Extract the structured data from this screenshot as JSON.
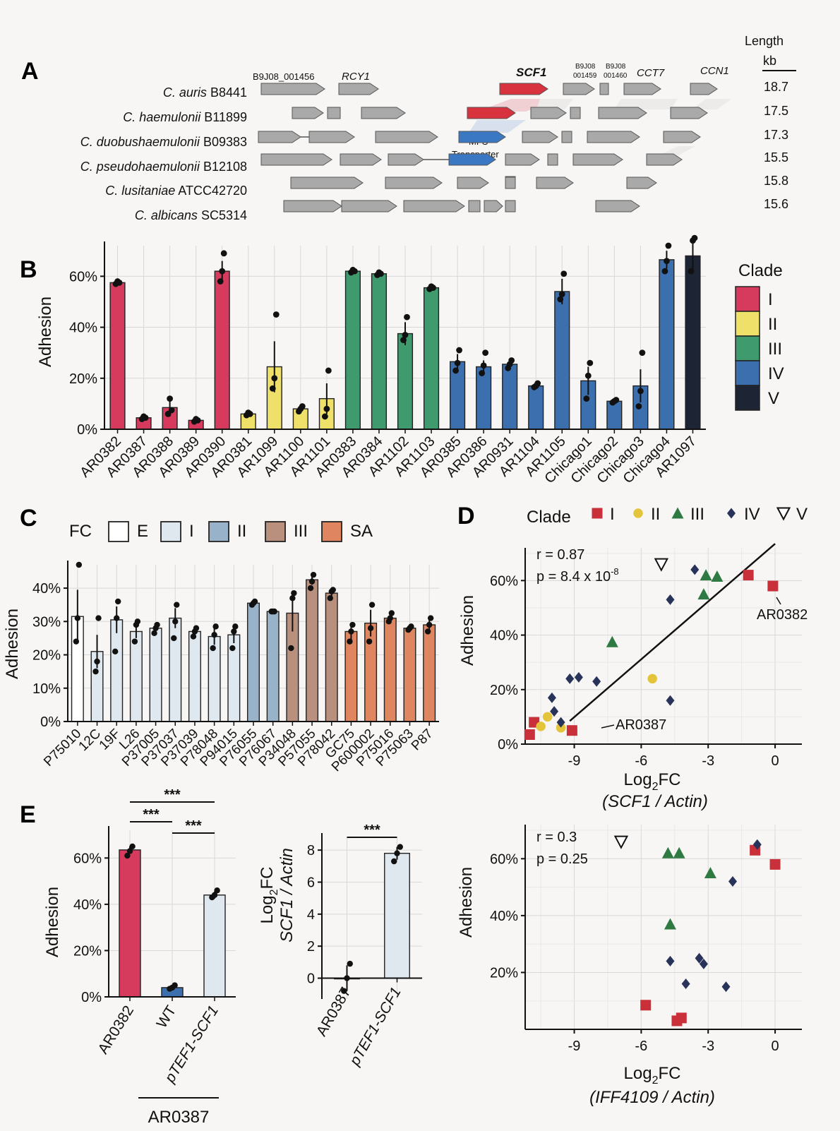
{
  "colors": {
    "I": "#d63a5c",
    "II": "#efe06a",
    "III": "#3f9a6e",
    "IV": "#3b6fae",
    "V": "#1d2433",
    "gene": "#a9a9a9",
    "scf1": "#d8323f",
    "mfs": "#3a78c4",
    "E": "#ffffff",
    "FCI": "#dfe7ef",
    "FCII": "#98b2c9",
    "FCIII": "#b9907e",
    "FCSA": "#df8660",
    "scI": "#c9303a",
    "scII": "#e3c43b",
    "scIII": "#2f7a43",
    "scIV": "#28335a"
  },
  "panelA": {
    "letter": "A",
    "length_header": "Length",
    "length_unit": "kb",
    "species": [
      {
        "name": "C. auris",
        "strain": "B8441",
        "length": "18.7"
      },
      {
        "name": "C. haemulonii",
        "strain": "B11899",
        "length": "17.5"
      },
      {
        "name": "C. duobushaemulonii",
        "strain": "B09383",
        "length": "17.3"
      },
      {
        "name": "C. pseudohaemulonii",
        "strain": "B12108",
        "length": "15.5"
      },
      {
        "name": "C. lusitaniae",
        "strain": "ATCC42720",
        "length": "15.8"
      },
      {
        "name": "C. albicans",
        "strain": "SC5314",
        "length": "15.6"
      }
    ],
    "gene_labels": {
      "g1": "B9J08_001456",
      "rcy1": "RCY1",
      "scf1": "SCF1",
      "g459a": "B9J08",
      "g459b": "001459",
      "g460a": "B9J08",
      "g460b": "001460",
      "cct7": "CCT7",
      "ccn1": "CCN1",
      "mfs1": "MFS",
      "mfs2": "Transporter"
    }
  },
  "panelB": {
    "letter": "B",
    "chart_data": {
      "type": "bar",
      "ylabel": "Adhesion",
      "ylim": [
        0,
        72
      ],
      "yticks": [
        "0%",
        "20%",
        "40%",
        "60%"
      ],
      "legend_title": "Clade",
      "legend": [
        "I",
        "II",
        "III",
        "IV",
        "V"
      ],
      "categories": [
        "AR0382",
        "AR0387",
        "AR0388",
        "AR0389",
        "AR0390",
        "AR0381",
        "AR1099",
        "AR1100",
        "AR1101",
        "AR0383",
        "AR0384",
        "AR1102",
        "AR1103",
        "AR0385",
        "AR0386",
        "AR0931",
        "AR1104",
        "AR1105",
        "Chicago1",
        "Chicago2",
        "Chicago3",
        "Chicago4",
        "AR1097"
      ],
      "clade": [
        "I",
        "I",
        "I",
        "I",
        "I",
        "II",
        "II",
        "II",
        "II",
        "III",
        "III",
        "III",
        "III",
        "IV",
        "IV",
        "IV",
        "IV",
        "IV",
        "IV",
        "IV",
        "IV",
        "IV",
        "V"
      ],
      "values": [
        57.5,
        4.5,
        8.5,
        3.5,
        62,
        6,
        24.5,
        8,
        12,
        62,
        61,
        37.5,
        55.5,
        26.5,
        24.5,
        25.5,
        17,
        54,
        19,
        11,
        17,
        66.5,
        68
      ],
      "err": [
        0.8,
        0.6,
        3.5,
        0.8,
        4,
        0.8,
        10,
        1.5,
        6,
        1,
        1,
        4.5,
        0.6,
        3,
        2.5,
        1.5,
        1,
        5,
        5.5,
        0.6,
        6.5,
        3.5,
        5.5
      ],
      "points": [
        [
          57,
          58,
          57.5
        ],
        [
          4,
          5,
          4.5
        ],
        [
          6,
          12,
          7.5
        ],
        [
          3,
          4,
          3.5
        ],
        [
          58,
          62,
          69
        ],
        [
          5.5,
          6.5,
          6
        ],
        [
          16,
          20,
          45
        ],
        [
          7,
          8,
          9
        ],
        [
          5,
          8,
          23
        ],
        [
          61.5,
          62.5,
          62
        ],
        [
          60.5,
          61.5,
          61
        ],
        [
          35,
          37,
          44
        ],
        [
          55,
          56,
          55.5
        ],
        [
          23,
          26,
          31
        ],
        [
          22,
          25,
          30
        ],
        [
          24,
          25.5,
          27
        ],
        [
          16.5,
          17,
          18
        ],
        [
          51,
          53,
          61
        ],
        [
          12,
          21,
          26
        ],
        [
          10.5,
          11,
          11.5
        ],
        [
          9,
          15,
          30
        ],
        [
          62,
          66,
          72
        ],
        [
          62,
          74,
          75
        ]
      ]
    }
  },
  "panelC": {
    "letter": "C",
    "legend_title": "FC",
    "chart_data": {
      "type": "bar",
      "ylabel": "Adhesion",
      "ylim": [
        0,
        47
      ],
      "yticks": [
        "0%",
        "10%",
        "20%",
        "30%",
        "40%"
      ],
      "legend": [
        "E",
        "I",
        "II",
        "III",
        "SA"
      ],
      "categories": [
        "P75010",
        "12C",
        "19F",
        "L26",
        "P37005",
        "P37037",
        "P37039",
        "P78048",
        "P94015",
        "P76055",
        "P76067",
        "P34048",
        "P57055",
        "P78042",
        "GC75",
        "P600002",
        "P75016",
        "P75063",
        "P87"
      ],
      "group": [
        "E",
        "I",
        "I",
        "I",
        "I",
        "I",
        "I",
        "I",
        "I",
        "II",
        "II",
        "III",
        "III",
        "III",
        "SA",
        "SA",
        "SA",
        "SA",
        "SA"
      ],
      "values": [
        31.5,
        21,
        30.5,
        27,
        28,
        31,
        27,
        25.5,
        26,
        35.5,
        33,
        32.5,
        42.5,
        38.5,
        27,
        29.5,
        31,
        28,
        29
      ],
      "err": [
        8,
        5,
        4,
        2,
        1,
        3,
        1.5,
        2.5,
        2.5,
        0.6,
        0.3,
        5.5,
        1.5,
        1.5,
        2.5,
        4,
        1.5,
        0.8,
        1.5
      ],
      "points": [
        [
          24,
          31,
          47
        ],
        [
          15,
          18,
          31
        ],
        [
          21,
          31,
          36
        ],
        [
          24,
          29,
          30
        ],
        [
          26.5,
          28,
          29
        ],
        [
          25,
          30,
          35
        ],
        [
          25.5,
          27,
          28
        ],
        [
          22,
          26,
          28.5
        ],
        [
          22,
          27,
          28.5
        ],
        [
          35,
          35.5,
          36
        ],
        [
          33,
          33,
          33
        ],
        [
          22,
          37,
          38.5
        ],
        [
          40,
          42,
          44
        ],
        [
          37,
          39,
          39.5
        ],
        [
          24,
          27,
          29
        ],
        [
          24,
          28,
          35
        ],
        [
          30,
          31,
          32.5
        ],
        [
          27.5,
          28,
          28.5
        ],
        [
          27,
          29,
          31
        ]
      ]
    }
  },
  "panelD": {
    "letter": "D",
    "legend_title": "Clade",
    "legend": [
      "I",
      "II",
      "III",
      "IV",
      "V"
    ],
    "top": {
      "chart_data": {
        "type": "scatter",
        "stats": [
          "r = 0.87",
          "p = 8.4 x 10"
        ],
        "p_exp": "-8",
        "xlabel": "Log",
        "xlabel_sub": "2",
        "xlabel_tail": "FC",
        "xlabel2": "(SCF1 / Actin)",
        "ylabel": "Adhesion",
        "xlim": [
          -11.2,
          1.2
        ],
        "ylim": [
          0,
          72
        ],
        "xticks": [
          "-9",
          "-6",
          "-3",
          "0"
        ],
        "yticks": [
          "0%",
          "20%",
          "40%",
          "60%"
        ],
        "annotations": [
          "AR0382",
          "AR0387"
        ],
        "fit": {
          "x": [
            -9.2,
            0
          ],
          "y": [
            8.5,
            73.5
          ]
        },
        "points": [
          {
            "clade": "I",
            "x": -1.2,
            "y": 62
          },
          {
            "clade": "I",
            "x": -0.1,
            "y": 58
          },
          {
            "clade": "I",
            "x": -10.8,
            "y": 8
          },
          {
            "clade": "I",
            "x": -11,
            "y": 3.5
          },
          {
            "clade": "I",
            "x": -9.1,
            "y": 5
          },
          {
            "clade": "II",
            "x": -5.5,
            "y": 24
          },
          {
            "clade": "II",
            "x": -10.2,
            "y": 10
          },
          {
            "clade": "II",
            "x": -10.5,
            "y": 6.5
          },
          {
            "clade": "II",
            "x": -9.6,
            "y": 6
          },
          {
            "clade": "III",
            "x": -3.1,
            "y": 62
          },
          {
            "clade": "III",
            "x": -2.6,
            "y": 61.5
          },
          {
            "clade": "III",
            "x": -3.2,
            "y": 55
          },
          {
            "clade": "III",
            "x": -7.3,
            "y": 37.5
          },
          {
            "clade": "IV",
            "x": -3.6,
            "y": 64
          },
          {
            "clade": "IV",
            "x": -4.7,
            "y": 53
          },
          {
            "clade": "IV",
            "x": -9.2,
            "y": 24
          },
          {
            "clade": "IV",
            "x": -8.8,
            "y": 24.5
          },
          {
            "clade": "IV",
            "x": -8,
            "y": 23
          },
          {
            "clade": "IV",
            "x": -10,
            "y": 17
          },
          {
            "clade": "IV",
            "x": -4.7,
            "y": 16
          },
          {
            "clade": "IV",
            "x": -9.6,
            "y": 8
          },
          {
            "clade": "IV",
            "x": -9.9,
            "y": 12
          },
          {
            "clade": "V",
            "x": -5.1,
            "y": 66
          }
        ]
      }
    },
    "bottom": {
      "chart_data": {
        "type": "scatter",
        "stats": [
          "r = 0.3",
          "p = 0.25"
        ],
        "xlabel": "Log",
        "xlabel_sub": "2",
        "xlabel_tail": "FC",
        "xlabel2": "(IFF4109 / Actin)",
        "ylabel": "Adhesion",
        "xlim": [
          -11.2,
          1.2
        ],
        "ylim": [
          0,
          72
        ],
        "xticks": [
          "-9",
          "-6",
          "-3",
          "0"
        ],
        "yticks": [
          "20%",
          "40%",
          "60%"
        ],
        "points": [
          {
            "clade": "I",
            "x": -0.9,
            "y": 63
          },
          {
            "clade": "I",
            "x": 0,
            "y": 58
          },
          {
            "clade": "I",
            "x": -5.8,
            "y": 8.5
          },
          {
            "clade": "I",
            "x": -4.2,
            "y": 4
          },
          {
            "clade": "I",
            "x": -4.4,
            "y": 3
          },
          {
            "clade": "III",
            "x": -4.8,
            "y": 62
          },
          {
            "clade": "III",
            "x": -4.3,
            "y": 62
          },
          {
            "clade": "III",
            "x": -2.9,
            "y": 55
          },
          {
            "clade": "III",
            "x": -4.7,
            "y": 37
          },
          {
            "clade": "IV",
            "x": -0.8,
            "y": 65
          },
          {
            "clade": "IV",
            "x": -1.9,
            "y": 52
          },
          {
            "clade": "IV",
            "x": -4.7,
            "y": 24
          },
          {
            "clade": "IV",
            "x": -3.4,
            "y": 25
          },
          {
            "clade": "IV",
            "x": -3.2,
            "y": 23
          },
          {
            "clade": "IV",
            "x": -4,
            "y": 16
          },
          {
            "clade": "IV",
            "x": -2.2,
            "y": 15
          },
          {
            "clade": "V",
            "x": -6.9,
            "y": 66
          }
        ]
      }
    }
  },
  "panelE": {
    "letter": "E",
    "left": {
      "chart_data": {
        "type": "bar",
        "ylabel": "Adhesion",
        "ylim": [
          0,
          72
        ],
        "yticks": [
          "0%",
          "20%",
          "40%",
          "60%"
        ],
        "categories": [
          "AR0382",
          "WT",
          "pTEF1-SCF1"
        ],
        "bracket_label": "AR0387",
        "values": [
          63.5,
          4,
          44
        ],
        "err": [
          1.5,
          0.8,
          1.5
        ],
        "points": [
          [
            61,
            63,
            65
          ],
          [
            3.5,
            4,
            5
          ],
          [
            43,
            44,
            46
          ]
        ],
        "sig": [
          "***",
          "***",
          "***"
        ]
      }
    },
    "right": {
      "chart_data": {
        "type": "bar",
        "ylabel1": "Log",
        "ylabel1_sub": "2",
        "ylabel1_tail": "FC",
        "ylabel2": "SCF1 / Actin",
        "ylim": [
          -1.3,
          8.8
        ],
        "yticks": [
          "0",
          "2",
          "4",
          "6",
          "8"
        ],
        "categories": [
          "AR0387",
          "pTEF1-SCF1"
        ],
        "values": [
          0,
          7.8
        ],
        "err": [
          0.8,
          0.4
        ],
        "points": [
          [
            -0.8,
            0,
            0.9
          ],
          [
            7.3,
            7.8,
            8.2
          ]
        ],
        "sig": "***"
      }
    }
  }
}
